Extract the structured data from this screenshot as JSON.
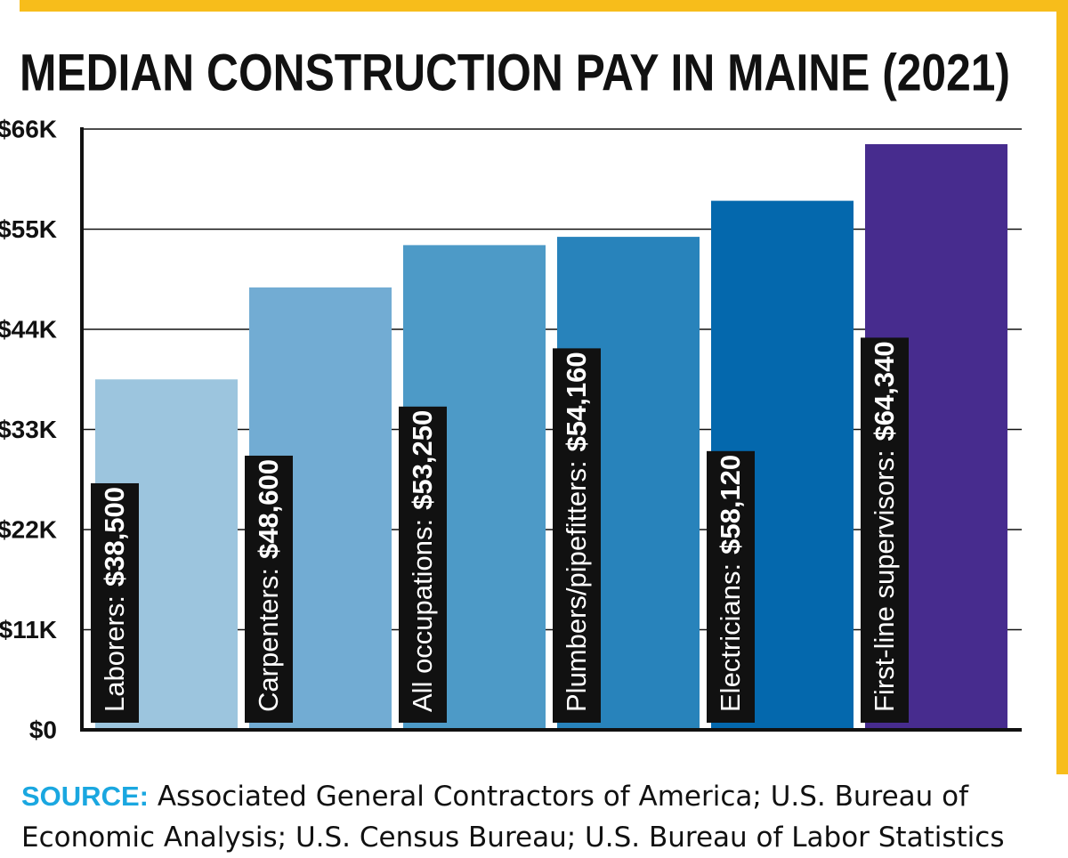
{
  "chart_data": {
    "type": "bar",
    "title": "MEDIAN CONSTRUCTION PAY IN MAINE (2021)",
    "categories": [
      "Laborers:",
      "Carpenters:",
      "All occupations:",
      "Plumbers/pipefitters:",
      "Electricians:",
      "First-line supervisors:"
    ],
    "values": [
      38500,
      48600,
      53250,
      54160,
      58120,
      64340
    ],
    "value_labels": [
      "$38,500",
      "$48,600",
      "$53,250",
      "$54,160",
      "$58,120",
      "$64,340"
    ],
    "colors": [
      "#9cc5de",
      "#72acd3",
      "#4d9ac7",
      "#2883bb",
      "#0468ad",
      "#472c8e"
    ],
    "ylim": [
      0,
      66000
    ],
    "yticks": [
      {
        "value": 0,
        "label": "$0"
      },
      {
        "value": 11000,
        "label": "$11K"
      },
      {
        "value": 22000,
        "label": "$22K"
      },
      {
        "value": 33000,
        "label": "$33K"
      },
      {
        "value": 44000,
        "label": "$44K"
      },
      {
        "value": 55000,
        "label": "$55K"
      },
      {
        "value": 66000,
        "label": "$66K"
      }
    ],
    "grid": true,
    "source_label": "SOURCE:",
    "source": "Associated General Contractors of America; U.S. Bureau of Economic Analysis; U.S. Census Bureau; U.S. Bureau of Labor Statistics"
  }
}
